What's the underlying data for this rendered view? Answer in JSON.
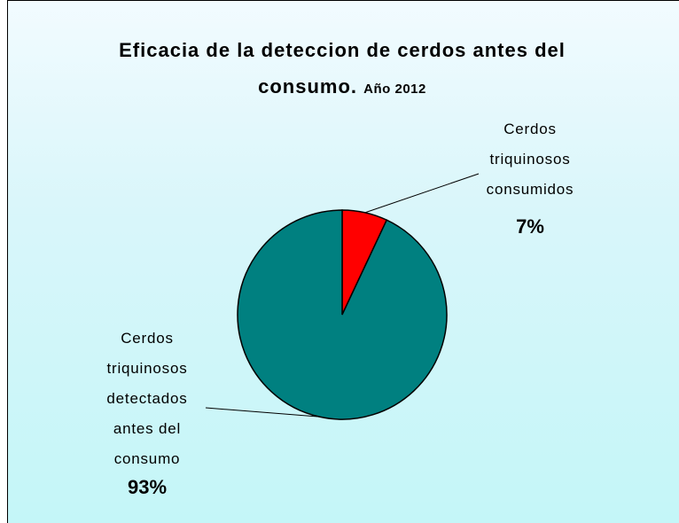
{
  "chart_data": {
    "type": "pie",
    "title": "Eficacia de la deteccion de cerdos antes del consumo.",
    "subtitle": "Año 2012",
    "categories": [
      "Cerdos triquinosos consumidos",
      "Cerdos triquinosos detectados antes del consumo"
    ],
    "values": [
      7,
      93
    ],
    "value_labels": [
      "7%",
      "93%"
    ],
    "colors": [
      "#ff0000",
      "#008080"
    ]
  }
}
